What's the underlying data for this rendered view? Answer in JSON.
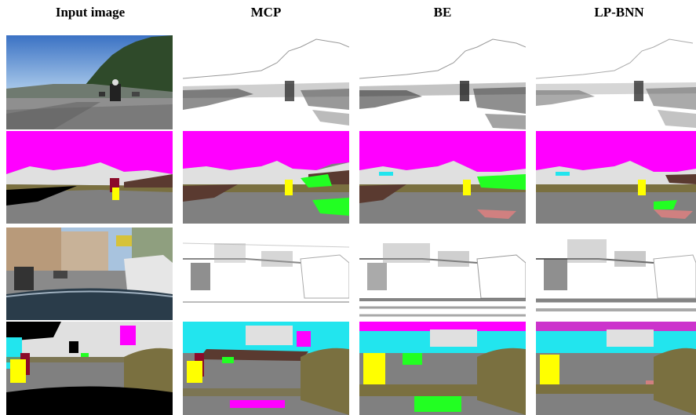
{
  "figure": {
    "column_headers": [
      "Input image",
      "MCP",
      "BE",
      "LP-BNN"
    ],
    "rows": [
      {
        "kind": "photo",
        "scene": "highway-motorcycle"
      },
      {
        "kind": "segmentation",
        "scene": "highway-motorcycle"
      },
      {
        "kind": "photo",
        "scene": "city-street-dashboard"
      },
      {
        "kind": "segmentation",
        "scene": "city-street-dashboard"
      }
    ],
    "colors": {
      "sky": "#ff00ff",
      "road": "#808080",
      "vegetation_building": "#e0e0e0",
      "terrain": "#7a7040",
      "person": "#ffff00",
      "rider": "#8b0a2a",
      "void": "#000000",
      "brown": "#5a3a30",
      "green": "#22ff22",
      "cyan": "#22e5ee",
      "sidewalk": "#d08080"
    }
  }
}
